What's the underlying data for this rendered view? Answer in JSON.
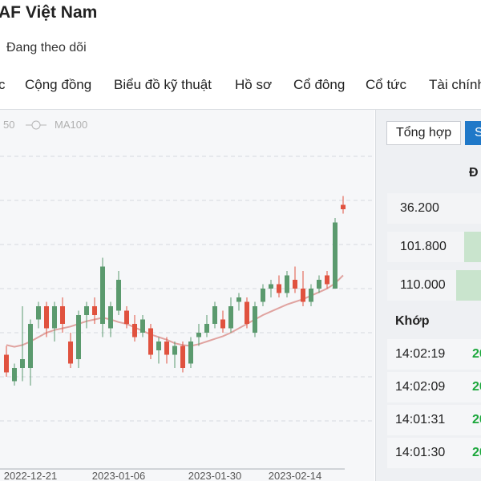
{
  "header": {
    "title": "AF Việt Nam",
    "follow": "Đang theo dõi"
  },
  "nav": [
    "c",
    "Cộng đồng",
    "Biểu đồ kỹ thuật",
    "Hồ sơ",
    "Cổ đông",
    "Cổ tức",
    "Tài chính"
  ],
  "chart_data": {
    "type": "candlestick",
    "legend": [
      "50",
      "MA100"
    ],
    "categories": [
      null,
      null,
      null,
      "2022-12-21",
      null,
      null,
      null,
      null,
      null,
      null,
      null,
      null,
      null,
      null,
      "2023-01-06",
      null,
      null,
      null,
      null,
      null,
      null,
      null,
      null,
      null,
      null,
      null,
      "2023-01-30",
      null,
      null,
      null,
      null,
      null,
      null,
      null,
      null,
      null,
      "2023-02-14",
      null,
      null,
      null,
      null,
      null,
      null
    ],
    "open": [
      18.75,
      18.45,
      18.6,
      18.6,
      19.15,
      19.3,
      19.05,
      19.3,
      18.9,
      18.7,
      19.2,
      19.3,
      19.1,
      19.05,
      19.25,
      19.25,
      19.1,
      19.0,
      19.05,
      18.8,
      18.9,
      18.75,
      18.85,
      18.65,
      18.95,
      19.0,
      19.1,
      19.15,
      19.05,
      19.35,
      19.35,
      19.0,
      19.35,
      19.5,
      19.55,
      19.45,
      19.6,
      19.5,
      19.35,
      19.5,
      19.65,
      19.5,
      20.45
    ],
    "high": [
      18.85,
      18.65,
      19.3,
      19.15,
      19.35,
      19.35,
      19.35,
      19.4,
      19.0,
      19.25,
      19.35,
      19.4,
      19.85,
      19.35,
      19.7,
      19.3,
      19.2,
      19.2,
      19.1,
      18.95,
      18.95,
      18.9,
      18.9,
      18.95,
      19.1,
      19.2,
      19.35,
      19.25,
      19.4,
      19.45,
      19.4,
      19.35,
      19.55,
      19.6,
      19.65,
      19.7,
      19.75,
      19.7,
      19.55,
      19.65,
      19.7,
      20.3,
      20.55
    ],
    "low": [
      18.5,
      18.4,
      18.45,
      18.4,
      19.05,
      18.95,
      18.9,
      19.0,
      18.6,
      18.6,
      19.05,
      19.1,
      18.95,
      18.95,
      19.2,
      19.05,
      18.9,
      18.95,
      18.7,
      18.65,
      18.65,
      18.6,
      18.55,
      18.6,
      18.85,
      18.95,
      19.05,
      19.0,
      19.0,
      19.25,
      19.05,
      18.95,
      19.3,
      19.4,
      19.4,
      19.4,
      19.45,
      19.3,
      19.3,
      19.45,
      19.5,
      19.5,
      20.35
    ],
    "close": [
      18.55,
      18.6,
      18.7,
      19.1,
      19.3,
      19.05,
      19.3,
      19.1,
      18.65,
      19.2,
      19.3,
      19.2,
      19.75,
      19.3,
      19.6,
      19.1,
      18.95,
      19.15,
      18.75,
      18.9,
      18.75,
      18.85,
      18.6,
      18.9,
      19.0,
      19.1,
      19.3,
      19.05,
      19.3,
      19.4,
      19.1,
      19.3,
      19.5,
      19.55,
      19.45,
      19.65,
      19.5,
      19.35,
      19.5,
      19.6,
      19.55,
      20.25,
      20.4
    ],
    "up_color": "#5b9a6e",
    "down_color": "#e0523f",
    "ma": {
      "color": "#e0a3a0",
      "values": [
        18.86,
        18.84,
        18.86,
        18.9,
        18.95,
        19.0,
        19.03,
        19.05,
        19.07,
        19.1,
        19.13,
        19.15,
        19.17,
        19.15,
        19.12,
        19.1,
        19.06,
        19.02,
        18.98,
        18.95,
        18.92,
        18.88,
        18.86,
        18.85,
        18.87,
        18.9,
        18.93,
        18.96,
        19.0,
        19.05,
        19.1,
        19.15,
        19.2,
        19.24,
        19.28,
        19.32,
        19.35,
        19.38,
        19.42,
        19.46,
        19.5,
        19.56,
        19.65
      ]
    },
    "ylim": [
      17.5,
      21.5
    ],
    "grid": true
  },
  "side": {
    "tabs": [
      "Tổng hợp",
      "S"
    ],
    "heading": "Đ",
    "book": [
      "36.200",
      "101.800",
      "110.000"
    ],
    "match_title": "Khớp",
    "trades": [
      {
        "time": "14:02:19",
        "price": "20"
      },
      {
        "time": "14:02:09",
        "price": "20"
      },
      {
        "time": "14:01:31",
        "price": "20"
      },
      {
        "time": "14:01:30",
        "price": "20"
      }
    ]
  }
}
